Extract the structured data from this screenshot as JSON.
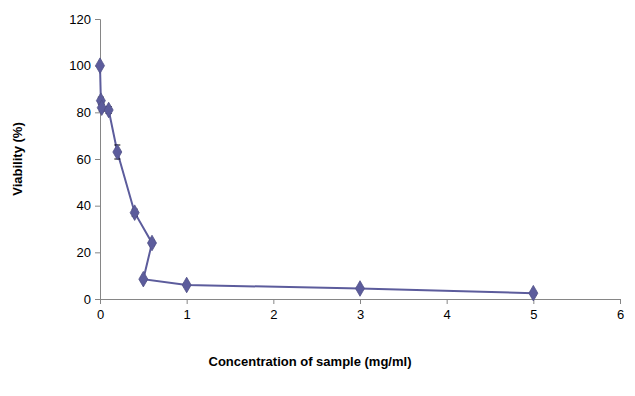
{
  "chart_data": {
    "type": "line",
    "x_label": "Concentration of sample (mg/ml)",
    "y_label": "Viability (%)",
    "x": [
      0,
      0.01,
      0.02,
      0.1,
      0.2,
      0.4,
      0.6,
      0.5,
      1,
      3,
      5
    ],
    "values": [
      100,
      85,
      82,
      81,
      63,
      37,
      24,
      8.5,
      6,
      4.5,
      2.5
    ],
    "errors": [
      0.5,
      1.5,
      1.5,
      1.5,
      3,
      1.5,
      1,
      0.8,
      0.8,
      0.8,
      0.8
    ],
    "color": "#5c5c9c",
    "marker": "diamond",
    "xlim": [
      0,
      6
    ],
    "xticks": [
      0,
      1,
      2,
      3,
      4,
      5,
      6
    ],
    "ylim": [
      0,
      120
    ],
    "yticks": [
      0,
      20,
      40,
      60,
      80,
      100,
      120
    ],
    "grid": false
  }
}
